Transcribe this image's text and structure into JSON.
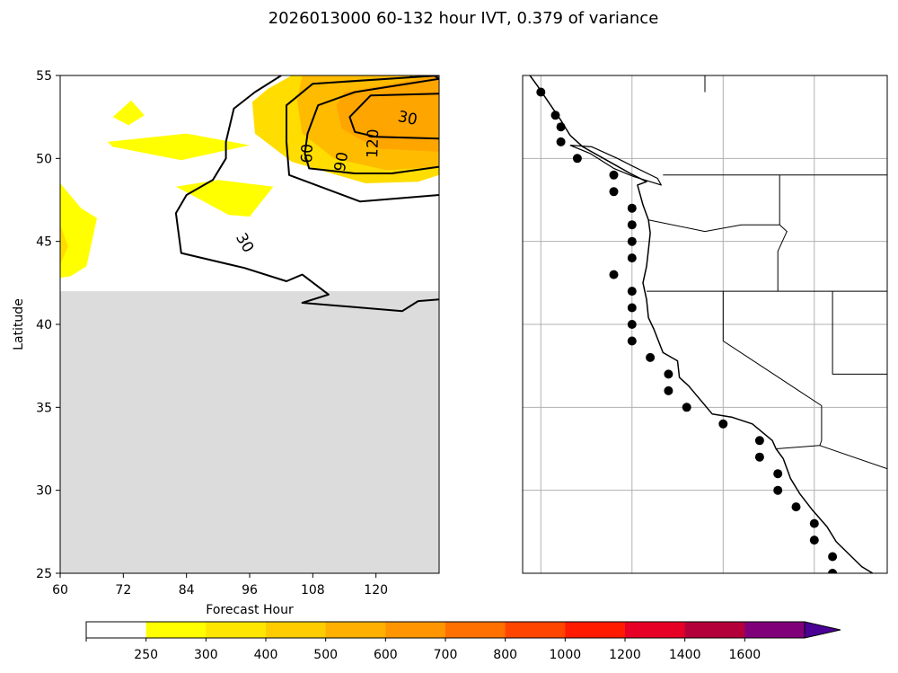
{
  "figure": {
    "title": "2026013000 60-132 hour IVT, 0.379 of variance"
  },
  "chart_data": [
    {
      "type": "heatmap",
      "panel": "left",
      "xlabel": "Forecast Hour",
      "ylabel": "Latitude",
      "xlim": [
        60,
        132
      ],
      "ylim": [
        25,
        55
      ],
      "xticks": [
        "60",
        "72",
        "84",
        "96",
        "108",
        "120"
      ],
      "yticks": [
        "25",
        "30",
        "35",
        "40",
        "45",
        "50",
        "55"
      ],
      "masked_region": {
        "lat_below": 42,
        "color": "#dcdcdc"
      },
      "contour_labels": [
        {
          "text": "30",
          "hour": 126,
          "lat": 52.4
        },
        {
          "text": "60",
          "hour": 107,
          "lat": 50.3
        },
        {
          "text": "90",
          "hour": 113.5,
          "lat": 49.8
        },
        {
          "text": "120",
          "hour": 119.5,
          "lat": 50.9
        },
        {
          "text": "30",
          "hour": 95,
          "lat": 44.9
        }
      ],
      "filled_regions": [
        {
          "name": "northern IVT maximum",
          "color": "#ffdd00",
          "points": [
            [
              99.5,
              54.2
            ],
            [
              104,
              55
            ],
            [
              132,
              55
            ],
            [
              132,
              49
            ],
            [
              128,
              48.6
            ],
            [
              118,
              48.5
            ],
            [
              104,
              49.8
            ],
            [
              97,
              51.5
            ],
            [
              96.5,
              53.4
            ]
          ]
        },
        {
          "name": "core",
          "color": "#ffbb00",
          "points": [
            [
              106,
              55
            ],
            [
              132,
              55
            ],
            [
              132,
              49.5
            ],
            [
              122,
              49.3
            ],
            [
              112,
              50
            ],
            [
              106,
              51.5
            ],
            [
              105,
              53.5
            ]
          ]
        },
        {
          "name": "inner core",
          "color": "#ffa500",
          "points": [
            [
              114,
              54
            ],
            [
              132,
              55
            ],
            [
              132,
              50.4
            ],
            [
              120,
              50.6
            ],
            [
              113.5,
              51.8
            ],
            [
              112.5,
              53.2
            ]
          ]
        },
        {
          "name": "streak",
          "color": "#ffff00",
          "points": [
            [
              69,
              51
            ],
            [
              84,
              51.5
            ],
            [
              96,
              50.8
            ],
            [
              83,
              49.9
            ],
            [
              70,
              50.7
            ]
          ]
        },
        {
          "name": "spot north",
          "color": "#ffff00",
          "points": [
            [
              70,
              52.5
            ],
            [
              73.5,
              53.5
            ],
            [
              76,
              52.6
            ],
            [
              73,
              52
            ]
          ]
        },
        {
          "name": "spot mid",
          "color": "#ffff00",
          "points": [
            [
              82,
              48.3
            ],
            [
              90,
              48.7
            ],
            [
              100.5,
              48.3
            ],
            [
              96,
              46.5
            ],
            [
              92,
              46.6
            ],
            [
              85,
              47.8
            ]
          ]
        },
        {
          "name": "western edge",
          "color": "#ffff00",
          "points": [
            [
              60,
              48.5
            ],
            [
              64,
              47
            ],
            [
              67,
              46.4
            ],
            [
              65,
              43.5
            ],
            [
              62,
              42.9
            ],
            [
              60,
              42.8
            ]
          ]
        },
        {
          "name": "western edge inner",
          "color": "#ffdd00",
          "points": [
            [
              60,
              46
            ],
            [
              61.5,
              44.7
            ],
            [
              60,
              43.6
            ]
          ]
        }
      ],
      "contours": [
        {
          "level": 30,
          "points": [
            [
              102,
              55
            ],
            [
              97,
              54
            ],
            [
              93,
              53
            ],
            [
              91.5,
              51
            ],
            [
              91.5,
              50
            ],
            [
              89,
              48.7
            ],
            [
              84,
              47.8
            ],
            [
              82,
              46.7
            ],
            [
              83,
              44.3
            ],
            [
              95,
              43.4
            ],
            [
              103,
              42.6
            ],
            [
              106,
              43
            ],
            [
              111,
              41.8
            ],
            [
              106,
              41.3
            ],
            [
              125,
              40.8
            ],
            [
              128,
              41.4
            ],
            [
              132,
              41.5
            ]
          ]
        },
        {
          "level": 60,
          "points": [
            [
              132,
              55
            ],
            [
              108,
              54.5
            ],
            [
              103,
              53.2
            ],
            [
              103,
              51
            ],
            [
              103.5,
              49
            ],
            [
              117,
              47.4
            ],
            [
              132,
              47.8
            ]
          ]
        },
        {
          "level": 90,
          "points": [
            [
              132,
              54.8
            ],
            [
              116,
              54
            ],
            [
              109,
              53.2
            ],
            [
              107,
              51.5
            ],
            [
              106.5,
              50.3
            ],
            [
              107.3,
              49.4
            ],
            [
              116,
              49.1
            ],
            [
              123,
              49.1
            ],
            [
              132,
              49.5
            ]
          ]
        },
        {
          "level": 120,
          "points": [
            [
              132,
              53.9
            ],
            [
              119,
              53.8
            ],
            [
              115,
              52.5
            ],
            [
              116,
              51.6
            ],
            [
              120,
              51.3
            ],
            [
              132,
              51.2
            ]
          ]
        },
        {
          "level": 30,
          "points": [
            [
              126.5,
              55
            ],
            [
              130,
              55.2
            ],
            [
              132,
              54.8
            ]
          ]
        }
      ]
    },
    {
      "type": "scatter",
      "panel": "right",
      "description_labels": false,
      "xlim": [
        -131,
        -111
      ],
      "ylim": [
        25,
        55
      ],
      "grid_lon": [
        -130,
        -125,
        -120,
        -115
      ],
      "grid_lat": [
        25,
        30,
        35,
        40,
        45,
        50,
        55
      ],
      "points": [
        [
          -130,
          54
        ],
        [
          -129.2,
          52.6
        ],
        [
          -128.9,
          51.9
        ],
        [
          -128.9,
          51
        ],
        [
          -128,
          50
        ],
        [
          -126,
          49
        ],
        [
          -126,
          48
        ],
        [
          -125,
          47
        ],
        [
          -125,
          46
        ],
        [
          -125,
          45
        ],
        [
          -125,
          44
        ],
        [
          -126,
          43
        ],
        [
          -125,
          42
        ],
        [
          -125,
          41
        ],
        [
          -125,
          40
        ],
        [
          -125,
          39
        ],
        [
          -124,
          38
        ],
        [
          -123,
          37
        ],
        [
          -123,
          36
        ],
        [
          -122,
          35
        ],
        [
          -120,
          34
        ],
        [
          -118,
          33
        ],
        [
          -118,
          32
        ],
        [
          -117,
          31
        ],
        [
          -117,
          30
        ],
        [
          -116,
          29
        ],
        [
          -115,
          28
        ],
        [
          -115,
          27
        ],
        [
          -114,
          26
        ],
        [
          -114,
          25
        ]
      ]
    }
  ],
  "colorbar": {
    "labels": [
      "250",
      "300",
      "400",
      "500",
      "600",
      "700",
      "800",
      "1000",
      "1200",
      "1400",
      "1600"
    ],
    "colors": [
      "#ffffff",
      "#ffff00",
      "#ffe600",
      "#ffcc00",
      "#ffb000",
      "#ff9500",
      "#ff7000",
      "#ff4500",
      "#ff1a00",
      "#e60026",
      "#b3003a",
      "#80007a",
      "#4b0096"
    ],
    "extend": "max"
  },
  "map": {
    "coastline": [
      [
        -130.6,
        55
      ],
      [
        -130.2,
        54.4
      ],
      [
        -129.4,
        53.1
      ],
      [
        -128.9,
        52.3
      ],
      [
        -128.4,
        51.4
      ],
      [
        -127.7,
        50.7
      ],
      [
        -126.4,
        49.9
      ],
      [
        -125.1,
        49.1
      ],
      [
        -124.2,
        48.6
      ],
      [
        -124.7,
        48.4
      ],
      [
        -124.4,
        47.2
      ],
      [
        -124.1,
        46.3
      ],
      [
        -124,
        45.5
      ],
      [
        -124.1,
        44.5
      ],
      [
        -124.2,
        43.5
      ],
      [
        -124.4,
        42.5
      ],
      [
        -124.2,
        41.5
      ],
      [
        -124.1,
        40.4
      ],
      [
        -123.8,
        39.7
      ],
      [
        -123.3,
        38.3
      ],
      [
        -122.5,
        37.8
      ],
      [
        -122.4,
        36.8
      ],
      [
        -121.9,
        36.3
      ],
      [
        -120.6,
        34.6
      ],
      [
        -119.5,
        34.4
      ],
      [
        -118.4,
        34
      ],
      [
        -117.3,
        33
      ],
      [
        -117.1,
        32.5
      ],
      [
        -116.7,
        31.9
      ],
      [
        -116.3,
        30.7
      ],
      [
        -115.8,
        29.8
      ],
      [
        -115.1,
        28.8
      ],
      [
        -114.3,
        27.8
      ],
      [
        -113.8,
        26.9
      ],
      [
        -112.4,
        25.4
      ],
      [
        -111.5,
        24.8
      ]
    ],
    "vancouver_island": [
      [
        -128.4,
        50.8
      ],
      [
        -127.3,
        50.3
      ],
      [
        -126,
        49.4
      ],
      [
        -124.9,
        48.9
      ],
      [
        -123.4,
        48.4
      ],
      [
        -123.6,
        48.8
      ],
      [
        -124.9,
        49.5
      ],
      [
        -125.8,
        50
      ],
      [
        -127.2,
        50.7
      ]
    ],
    "borders": [
      [
        [
          -123.3,
          49
        ],
        [
          -117.5,
          49
        ],
        [
          -111,
          49
        ]
      ],
      [
        [
          -124.1,
          46.3
        ],
        [
          -121,
          45.6
        ],
        [
          -119,
          46
        ],
        [
          -116.9,
          46
        ]
      ],
      [
        [
          -124.2,
          42
        ],
        [
          -120,
          42
        ],
        [
          -114,
          42
        ],
        [
          -111,
          42
        ]
      ],
      [
        [
          -120,
          42
        ],
        [
          -120,
          39
        ],
        [
          -114.6,
          35.1
        ],
        [
          -114.6,
          33
        ],
        [
          -114.7,
          32.7
        ]
      ],
      [
        [
          -116.9,
          49
        ],
        [
          -116.9,
          46
        ],
        [
          -116.5,
          45.6
        ],
        [
          -117,
          44.4
        ],
        [
          -117,
          42
        ]
      ],
      [
        [
          -114,
          42
        ],
        [
          -114,
          37
        ],
        [
          -111,
          37
        ]
      ],
      [
        [
          -117.1,
          32.5
        ],
        [
          -114.7,
          32.7
        ],
        [
          -111,
          31.3
        ]
      ],
      [
        [
          -121,
          55
        ],
        [
          -121,
          54
        ]
      ]
    ]
  }
}
